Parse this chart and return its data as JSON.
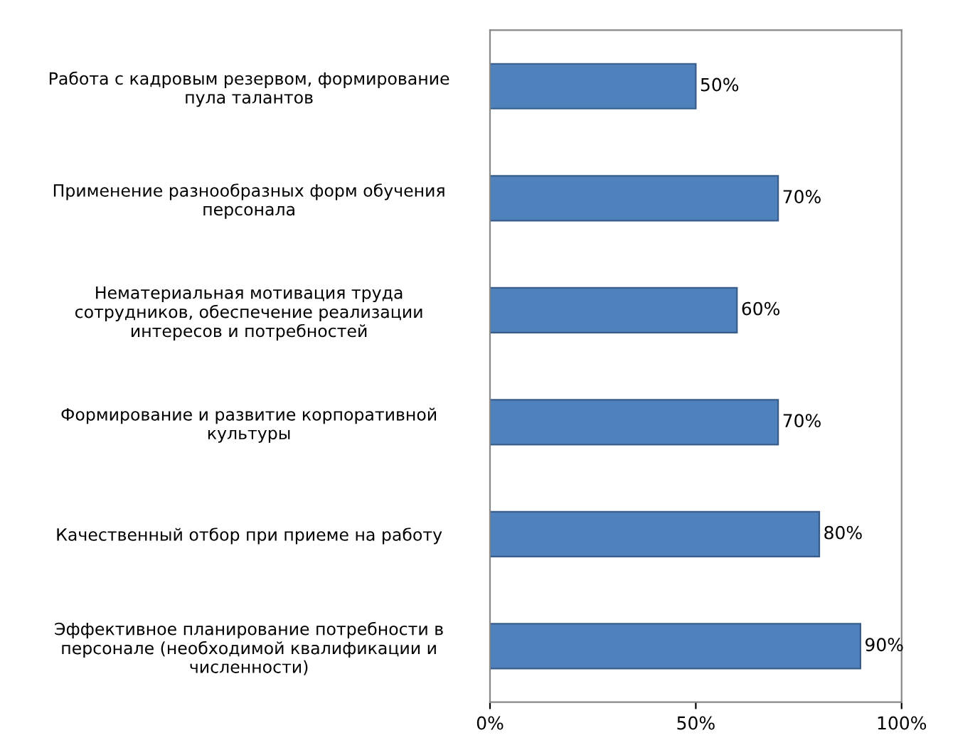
{
  "chart_data": {
    "type": "bar",
    "orientation": "horizontal",
    "categories": [
      "Работа с кадровым резервом, формирование\nпула талантов",
      "Применение разнообразных форм обучения\nперсонала",
      "Нематериальная мотивация труда\nсотрудников, обеспечение реализации\nинтересов и потребностей",
      "Формирование и развитие корпоративной\nкультуры",
      "Качественный отбор при приеме на работу",
      "Эффективное планирование потребности в\nперсонале (необходимой квалификации и\nчисленности)"
    ],
    "values": [
      50,
      70,
      60,
      70,
      80,
      90
    ],
    "value_labels": [
      "50%",
      "70%",
      "60%",
      "70%",
      "80%",
      "90%"
    ],
    "color": "#4f81bd",
    "xlim": [
      0,
      100
    ],
    "xticks": [
      {
        "value": 0,
        "label": "0%"
      },
      {
        "value": 50,
        "label": "50%"
      },
      {
        "value": 100,
        "label": "100%"
      }
    ],
    "grid": false,
    "legend": false
  }
}
